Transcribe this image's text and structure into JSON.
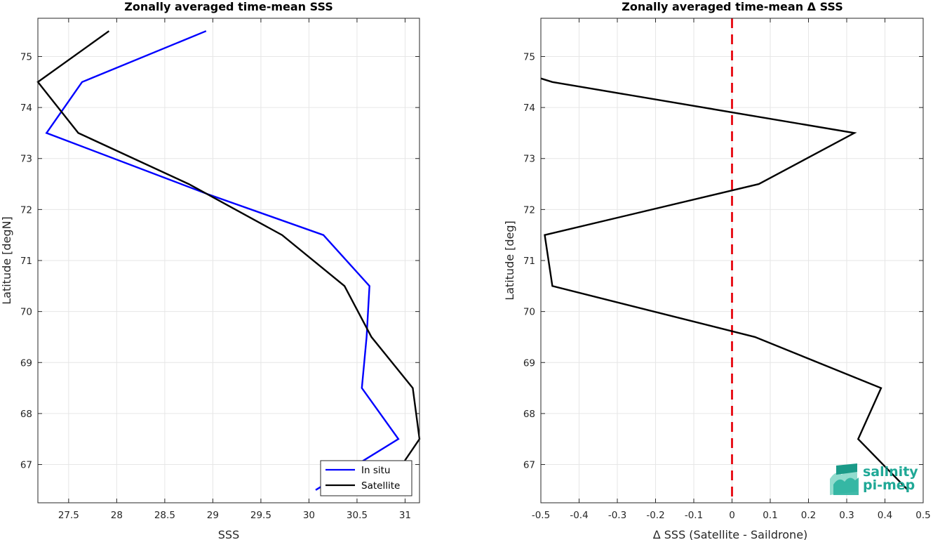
{
  "chart_data": [
    {
      "type": "line",
      "title": "Zonally averaged time-mean SSS",
      "xlabel": "SSS",
      "ylabel": "Latitude [degN]",
      "xlim": [
        27.18,
        31.15
      ],
      "ylim": [
        66.25,
        75.75
      ],
      "xticks": [
        "27.5",
        "28",
        "28.5",
        "29",
        "29.5",
        "30",
        "30.5",
        "31"
      ],
      "yticks": [
        "67",
        "68",
        "69",
        "70",
        "71",
        "72",
        "73",
        "74",
        "75"
      ],
      "grid": true,
      "legend_position": "bottom-right",
      "series": [
        {
          "name": "In situ",
          "color": "#0000ff",
          "points": [
            [
              30.07,
              66.5
            ],
            [
              30.93,
              67.5
            ],
            [
              30.55,
              68.5
            ],
            [
              30.6,
              69.5
            ],
            [
              30.63,
              70.5
            ],
            [
              30.15,
              71.5
            ],
            [
              28.95,
              72.3
            ],
            [
              27.27,
              73.5
            ],
            [
              27.64,
              74.5
            ],
            [
              28.93,
              75.5
            ]
          ]
        },
        {
          "name": "Satellite",
          "color": "#000000",
          "points": [
            [
              30.97,
              67.0
            ],
            [
              31.15,
              67.5
            ],
            [
              31.08,
              68.5
            ],
            [
              30.65,
              69.5
            ],
            [
              30.37,
              70.5
            ],
            [
              29.72,
              71.5
            ],
            [
              28.75,
              72.5
            ],
            [
              27.6,
              73.5
            ],
            [
              27.18,
              74.5
            ],
            [
              27.92,
              75.5
            ]
          ]
        }
      ]
    },
    {
      "type": "line",
      "title": "Zonally averaged time-mean Δ SSS",
      "xlabel": "Δ SSS (Satellite - Saildrone)",
      "ylabel": "Latitude [deg]",
      "xlim": [
        -0.5,
        0.5
      ],
      "ylim": [
        66.25,
        75.75
      ],
      "xticks": [
        "-0.5",
        "-0.4",
        "-0.3",
        "-0.2",
        "-0.1",
        "0",
        "0.1",
        "0.2",
        "0.3",
        "0.4",
        "0.5"
      ],
      "yticks": [
        "67",
        "68",
        "69",
        "70",
        "71",
        "72",
        "73",
        "74",
        "75"
      ],
      "grid": true,
      "reference_line": {
        "x": 0,
        "color": "#e8141c",
        "style": "dashed"
      },
      "series": [
        {
          "name": "",
          "color": "#000000",
          "points": [
            [
              -0.5,
              74.57
            ],
            [
              -0.47,
              74.5
            ],
            [
              0.32,
              73.5
            ],
            [
              0.07,
              72.5
            ],
            [
              -0.49,
              71.5
            ],
            [
              -0.47,
              70.5
            ],
            [
              0.06,
              69.5
            ],
            [
              0.39,
              68.5
            ],
            [
              0.33,
              67.5
            ],
            [
              0.46,
              66.5
            ]
          ]
        }
      ]
    }
  ],
  "logo": {
    "line1": "salinity",
    "line2": "pi-mep",
    "color": "#1fa896"
  }
}
